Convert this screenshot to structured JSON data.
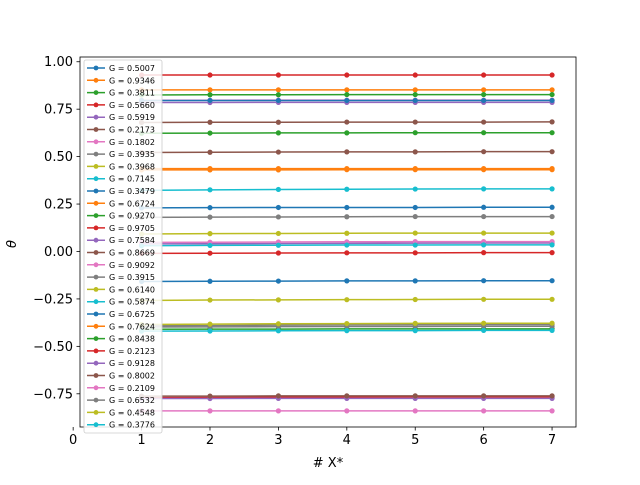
{
  "chart_data": {
    "type": "line",
    "title": "",
    "xlabel": "# X*",
    "ylabel": "θ",
    "xlim": [
      0.1,
      7.35
    ],
    "ylim": [
      -0.925,
      1.025
    ],
    "x": [
      1,
      2,
      3,
      4,
      5,
      6,
      7
    ],
    "xticks": [
      0,
      1,
      2,
      3,
      4,
      5,
      6,
      7
    ],
    "yticks": [
      1.0,
      0.75,
      0.5,
      0.25,
      0.0,
      -0.25,
      -0.5,
      -0.75
    ],
    "ytick_labels": [
      "1.00",
      "0.75",
      "0.50",
      "0.25",
      "0.00",
      "−0.25",
      "−0.50",
      "−0.75"
    ],
    "grid": false,
    "legend_position": "upper-left",
    "series": [
      {
        "name": "G = 0.5007",
        "color": "#1f77b4",
        "values": [
          0.23,
          0.231,
          0.232,
          0.232,
          0.232,
          0.233,
          0.233
        ]
      },
      {
        "name": "G = 0.9346",
        "color": "#ff7f0e",
        "values": [
          0.852,
          0.852,
          0.852,
          0.852,
          0.852,
          0.852,
          0.852
        ]
      },
      {
        "name": "G = 0.3811",
        "color": "#2ca02c",
        "values": [
          0.825,
          0.826,
          0.826,
          0.827,
          0.827,
          0.827,
          0.827
        ]
      },
      {
        "name": "G = 0.5660",
        "color": "#d62728",
        "values": [
          0.93,
          0.93,
          0.93,
          0.93,
          0.93,
          0.93,
          0.93
        ]
      },
      {
        "name": "G = 0.5919",
        "color": "#9467bd",
        "values": [
          0.785,
          0.785,
          0.786,
          0.786,
          0.786,
          0.786,
          0.786
        ]
      },
      {
        "name": "G = 0.2173",
        "color": "#8c564b",
        "values": [
          0.68,
          0.681,
          0.681,
          0.682,
          0.682,
          0.682,
          0.683
        ]
      },
      {
        "name": "G = 0.1802",
        "color": "#e377c2",
        "values": [
          0.797,
          0.797,
          0.798,
          0.798,
          0.798,
          0.798,
          0.798
        ]
      },
      {
        "name": "G = 0.3935",
        "color": "#7f7f7f",
        "values": [
          0.18,
          0.181,
          0.182,
          0.183,
          0.184,
          0.184,
          0.184
        ]
      },
      {
        "name": "G = 0.3968",
        "color": "#bcbd22",
        "values": [
          0.092,
          0.094,
          0.095,
          0.096,
          0.097,
          0.097,
          0.097
        ]
      },
      {
        "name": "G = 0.7145",
        "color": "#17becf",
        "values": [
          0.322,
          0.325,
          0.327,
          0.328,
          0.329,
          0.33,
          0.33
        ]
      },
      {
        "name": "G = 0.3479",
        "color": "#1f77b4",
        "values": [
          0.796,
          0.796,
          0.796,
          0.796,
          0.796,
          0.796,
          0.796
        ]
      },
      {
        "name": "G = 0.6724",
        "color": "#ff7f0e",
        "values": [
          0.437,
          0.437,
          0.437,
          0.437,
          0.437,
          0.437,
          0.437
        ]
      },
      {
        "name": "G = 0.9270",
        "color": "#2ca02c",
        "values": [
          0.623,
          0.624,
          0.625,
          0.625,
          0.626,
          0.626,
          0.626
        ]
      },
      {
        "name": "G = 0.9705",
        "color": "#d62728",
        "values": [
          -0.01,
          -0.009,
          -0.008,
          -0.007,
          -0.007,
          -0.006,
          -0.006
        ]
      },
      {
        "name": "G = 0.7584",
        "color": "#9467bd",
        "values": [
          0.04,
          0.041,
          0.042,
          0.043,
          0.044,
          0.045,
          0.045
        ]
      },
      {
        "name": "G = 0.8669",
        "color": "#8c564b",
        "values": [
          0.522,
          0.523,
          0.524,
          0.525,
          0.525,
          0.526,
          0.526
        ]
      },
      {
        "name": "G = 0.9092",
        "color": "#e377c2",
        "values": [
          0.048,
          0.049,
          0.05,
          0.051,
          0.052,
          0.052,
          0.052
        ]
      },
      {
        "name": "G = 0.3915",
        "color": "#7f7f7f",
        "values": [
          -0.392,
          -0.39,
          -0.388,
          -0.387,
          -0.386,
          -0.385,
          -0.385
        ]
      },
      {
        "name": "G = 0.6140",
        "color": "#bcbd22",
        "values": [
          -0.258,
          -0.256,
          -0.255,
          -0.254,
          -0.253,
          -0.252,
          -0.252
        ]
      },
      {
        "name": "G = 0.5874",
        "color": "#17becf",
        "values": [
          0.03,
          0.032,
          0.033,
          0.034,
          0.034,
          0.035,
          0.035
        ]
      },
      {
        "name": "G = 0.6725",
        "color": "#1f77b4",
        "values": [
          -0.158,
          -0.157,
          -0.156,
          -0.155,
          -0.155,
          -0.154,
          -0.154
        ]
      },
      {
        "name": "G = 0.7624",
        "color": "#ff7f0e",
        "values": [
          0.43,
          0.43,
          0.43,
          0.431,
          0.431,
          0.431,
          0.431
        ]
      },
      {
        "name": "G = 0.8438",
        "color": "#2ca02c",
        "values": [
          -0.41,
          -0.409,
          -0.409,
          -0.408,
          -0.408,
          -0.408,
          -0.408
        ]
      },
      {
        "name": "G = 0.2123",
        "color": "#d62728",
        "values": [
          -0.77,
          -0.769,
          -0.768,
          -0.768,
          -0.767,
          -0.767,
          -0.767
        ]
      },
      {
        "name": "G = 0.9128",
        "color": "#9467bd",
        "values": [
          -0.775,
          -0.775,
          -0.774,
          -0.774,
          -0.774,
          -0.774,
          -0.774
        ]
      },
      {
        "name": "G = 0.8002",
        "color": "#8c564b",
        "values": [
          -0.762,
          -0.762,
          -0.761,
          -0.761,
          -0.761,
          -0.761,
          -0.761
        ]
      },
      {
        "name": "G = 0.2109",
        "color": "#e377c2",
        "values": [
          -0.84,
          -0.84,
          -0.84,
          -0.84,
          -0.84,
          -0.84,
          -0.84
        ]
      },
      {
        "name": "G = 0.6532",
        "color": "#7f7f7f",
        "values": [
          -0.398,
          -0.397,
          -0.396,
          -0.395,
          -0.395,
          -0.394,
          -0.394
        ]
      },
      {
        "name": "G = 0.4548",
        "color": "#bcbd22",
        "values": [
          -0.385,
          -0.383,
          -0.381,
          -0.38,
          -0.379,
          -0.378,
          -0.378
        ]
      },
      {
        "name": "G = 0.3776",
        "color": "#17becf",
        "values": [
          -0.42,
          -0.419,
          -0.418,
          -0.417,
          -0.417,
          -0.416,
          -0.416
        ]
      }
    ]
  }
}
